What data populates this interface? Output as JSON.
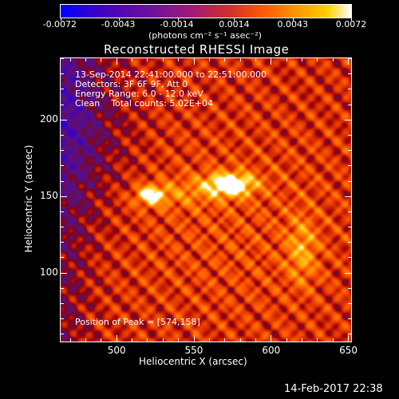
{
  "colorbar": {
    "tick_labels": [
      "-0.0072",
      "-0.0043",
      "-0.0014",
      "0.0014",
      "0.0043",
      "0.0072"
    ],
    "unit_label": "(photons cm⁻² s⁻¹ asec⁻²)"
  },
  "chart_data": {
    "type": "heatmap",
    "title": "Reconstructed RHESSI Image",
    "xlabel": "Heliocentric X (arcsec)",
    "ylabel": "Heliocentric Y (arcsec)",
    "xlim": [
      464,
      652
    ],
    "ylim": [
      55,
      240
    ],
    "xticks": [
      500,
      550,
      600,
      650
    ],
    "yticks": [
      100,
      150,
      200
    ],
    "colormap": "heat",
    "zlim": [
      -0.0072,
      0.0072
    ],
    "sources": [
      {
        "x": 574,
        "y": 158,
        "peak": 0.0072
      },
      {
        "x": 522,
        "y": 151,
        "peak": 0.0055
      },
      {
        "x": 620,
        "y": 115,
        "peak": 0.003
      }
    ],
    "info_lines": [
      "13-Sep-2014 22:41:00.000 to 22:51:00.000",
      "Detectors: 3F 6F 9F, Att 0",
      "Energy Range: 6.0 - 12.0 keV",
      "Clean    Total counts: 5.02E+04"
    ],
    "peak_note": "Position of Peak = [574,158]"
  },
  "timestamp": "14-Feb-2017 22:38"
}
